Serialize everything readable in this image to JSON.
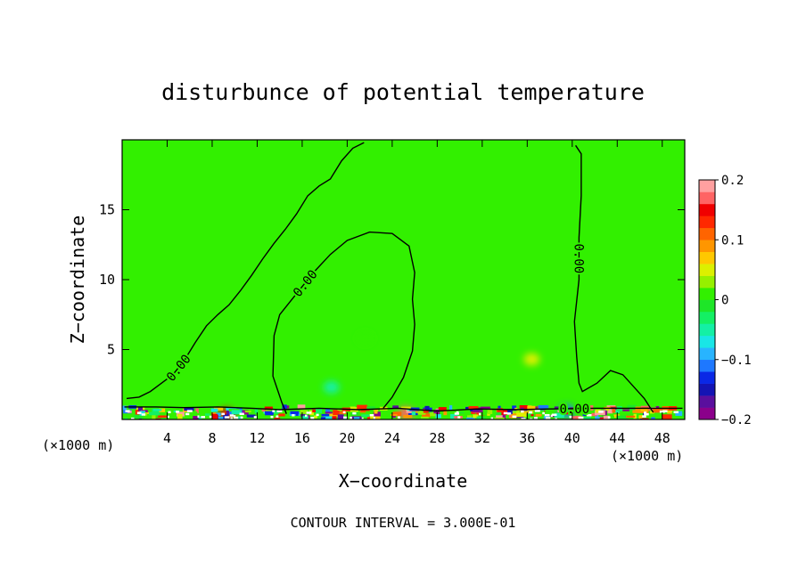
{
  "chart_data": {
    "type": "heatmap",
    "title": "disturbunce of potential temperature",
    "xlabel": "X−coordinate",
    "ylabel": "Z−coordinate",
    "x_unit_left": "(×1000 m)",
    "x_unit_right": "(×1000 m)",
    "footer": "CONTOUR INTERVAL = 3.000E-01",
    "xlim": [
      0,
      50
    ],
    "ylim": [
      0,
      20
    ],
    "x_ticks": [
      4,
      8,
      12,
      16,
      20,
      24,
      28,
      32,
      36,
      40,
      44,
      48
    ],
    "y_ticks": [
      5,
      10,
      15
    ],
    "background_value": 0,
    "colorbar": {
      "min": -0.2,
      "max": 0.2,
      "tick_values": [
        0.2,
        0.1,
        0,
        -0.1,
        -0.2
      ],
      "tick_labels": [
        "0.2",
        "0.1",
        "0",
        "−0.1",
        "−0.2"
      ],
      "colors": [
        "#8b008b",
        "#5a0f9e",
        "#1414b4",
        "#0a28e6",
        "#1e78ff",
        "#28b4ff",
        "#19e6e6",
        "#14f0a5",
        "#14f064",
        "#1ee628",
        "#32f000",
        "#96f000",
        "#dcf000",
        "#ffc800",
        "#ff9600",
        "#ff6400",
        "#ff2800",
        "#f00000",
        "#ff6464",
        "#ffa0a0"
      ]
    },
    "contour_label": "0.00",
    "contour_lines": [
      {
        "label": "0.00",
        "points": [
          [
            0.4,
            1.5
          ],
          [
            1.5,
            1.6
          ],
          [
            2.5,
            2.0
          ],
          [
            3.5,
            2.6
          ],
          [
            4.5,
            3.2
          ],
          [
            5.5,
            4.2
          ],
          [
            6.5,
            5.5
          ],
          [
            7.5,
            6.7
          ],
          [
            8.5,
            7.5
          ],
          [
            9.5,
            8.2
          ],
          [
            10.5,
            9.2
          ],
          [
            11.5,
            10.3
          ],
          [
            12.5,
            11.5
          ],
          [
            13.5,
            12.6
          ],
          [
            14.5,
            13.6
          ],
          [
            15.5,
            14.7
          ],
          [
            16.5,
            16.0
          ],
          [
            17.5,
            16.7
          ],
          [
            18.5,
            17.2
          ],
          [
            19.5,
            18.5
          ],
          [
            20.5,
            19.4
          ],
          [
            21.5,
            19.8
          ]
        ]
      },
      {
        "label": "0.00",
        "points": [
          [
            14.6,
            0.4
          ],
          [
            14.2,
            1.2
          ],
          [
            13.4,
            3.1
          ],
          [
            13.5,
            6.0
          ],
          [
            14.0,
            7.5
          ],
          [
            15.5,
            9.0
          ],
          [
            17.0,
            10.5
          ],
          [
            18.5,
            11.8
          ],
          [
            20.0,
            12.8
          ],
          [
            22.0,
            13.4
          ],
          [
            24.0,
            13.3
          ],
          [
            25.5,
            12.4
          ],
          [
            26.0,
            10.5
          ],
          [
            25.8,
            8.6
          ],
          [
            26.0,
            6.8
          ],
          [
            25.8,
            4.9
          ],
          [
            25.0,
            3.0
          ],
          [
            24.0,
            1.6
          ],
          [
            23.2,
            0.8
          ]
        ]
      },
      {
        "label": "0.00",
        "points": [
          [
            40.3,
            19.6
          ],
          [
            40.8,
            19.0
          ],
          [
            40.8,
            16.0
          ],
          [
            40.6,
            13.0
          ],
          [
            40.6,
            10.0
          ],
          [
            40.2,
            7.0
          ],
          [
            40.4,
            4.5
          ],
          [
            40.6,
            2.6
          ],
          [
            40.9,
            2.0
          ],
          [
            42.2,
            2.6
          ],
          [
            43.4,
            3.5
          ],
          [
            44.5,
            3.2
          ],
          [
            45.4,
            2.4
          ],
          [
            46.4,
            1.5
          ],
          [
            47.2,
            0.5
          ]
        ]
      },
      {
        "label": "",
        "points": [
          [
            0.2,
            0.9
          ],
          [
            3.0,
            0.9
          ],
          [
            5.5,
            0.85
          ],
          [
            8.5,
            0.9
          ],
          [
            11.5,
            0.8
          ],
          [
            14.0,
            0.7
          ],
          [
            17.5,
            0.8
          ],
          [
            21.0,
            0.7
          ],
          [
            24.5,
            0.8
          ],
          [
            28.0,
            0.6
          ],
          [
            31.5,
            0.75
          ],
          [
            35.0,
            0.7
          ],
          [
            38.0,
            0.75
          ],
          [
            42.0,
            0.8
          ],
          [
            45.0,
            0.8
          ],
          [
            49.8,
            0.8
          ]
        ]
      }
    ],
    "anomaly_patches": [
      {
        "x": 21.6,
        "z": 5.8,
        "value": 0.02
      },
      {
        "x": 18.6,
        "z": 2.3,
        "value": -0.04
      },
      {
        "x": 36.4,
        "z": 4.3,
        "value": 0.04
      },
      {
        "x": 9.3,
        "z": 0.35,
        "value": 0.15
      },
      {
        "x": 25.2,
        "z": 0.45,
        "value": 0.16
      },
      {
        "x": 39.5,
        "z": 0.6,
        "value": -0.12
      }
    ]
  }
}
